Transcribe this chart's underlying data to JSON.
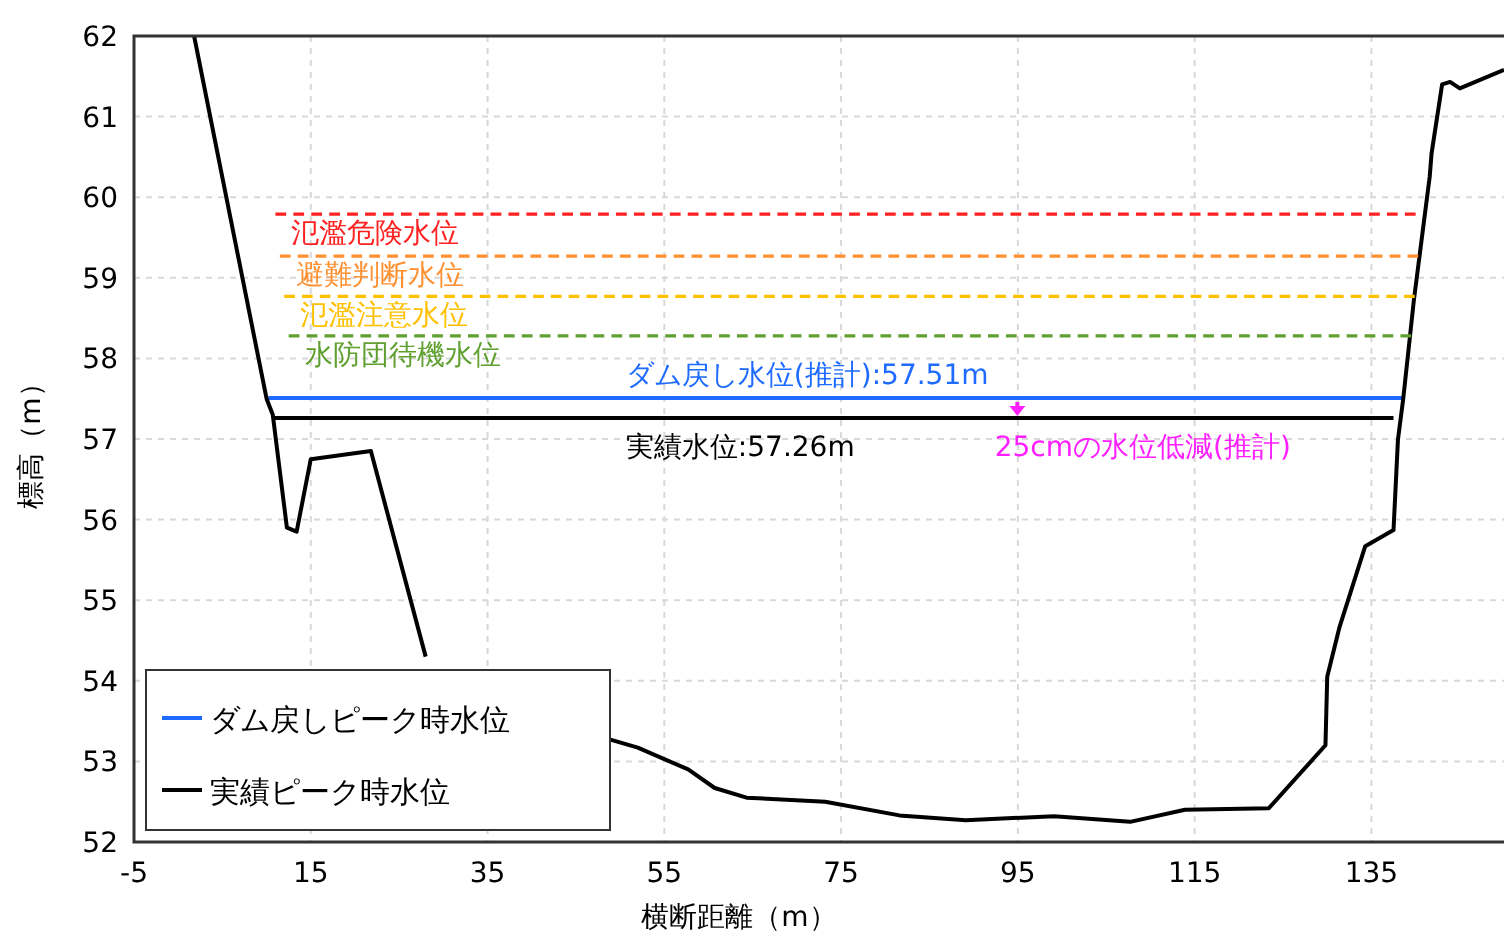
{
  "chart_data": {
    "type": "line",
    "xlabel": "横断距離（m）",
    "ylabel": "標高（m）",
    "xlim": [
      -5,
      150
    ],
    "xticks": [
      -5,
      15,
      35,
      55,
      75,
      95,
      115,
      135
    ],
    "ylim": [
      52,
      62
    ],
    "yticks": [
      52,
      53,
      54,
      55,
      56,
      57,
      58,
      59,
      60,
      61,
      62
    ],
    "grid": true,
    "legend": "bottom left",
    "line_style": "solid",
    "marker": "none",
    "series": [
      {
        "name": "ダム戻しピーク時水位",
        "color": "#1f6bff",
        "x": [
          10.2,
          138.6
        ],
        "values": [
          57.51,
          57.51
        ]
      },
      {
        "name": "実績ピーク時水位",
        "color": "#000000",
        "x": [
          10.7,
          137.5
        ],
        "values": [
          57.26,
          57.26
        ]
      },
      {
        "color": "#000000",
        "x": [
          1.8,
          10,
          10.7,
          12.3,
          13.4,
          15,
          21.8,
          28,
          38,
          48.9,
          52,
          57.7,
          60.7,
          64.3,
          73.2,
          81.6,
          89.1,
          99.1,
          107.7,
          113.9,
          123.4,
          129.8,
          130,
          131.4,
          134.3,
          137.5,
          138,
          138.6,
          139.8,
          141.6,
          141.8,
          143,
          143.9,
          145,
          150
        ],
        "values": [
          62,
          57.5,
          57.3,
          55.9,
          55.85,
          56.75,
          56.85,
          54.3,
          null,
          53.27,
          53.17,
          52.9,
          52.67,
          52.55,
          52.5,
          52.33,
          52.27,
          52.32,
          52.25,
          52.4,
          52.42,
          53.2,
          54.05,
          54.67,
          55.67,
          55.87,
          56.99,
          57.5,
          58.72,
          60.26,
          60.54,
          61.4,
          61.43,
          61.35,
          61.58
        ]
      },
      {
        "name": "氾濫危険水位",
        "color": "#ff2020",
        "line_style": "dashed",
        "x": [
          11,
          140
        ],
        "values": [
          59.79,
          59.79
        ]
      },
      {
        "name": "避難判断水位",
        "color": "#ff9030",
        "line_style": "dashed",
        "x": [
          11.5,
          140.3
        ],
        "values": [
          59.27,
          59.27
        ]
      },
      {
        "name": "氾濫注意水位",
        "color": "#ffc000",
        "line_style": "dashed",
        "x": [
          12,
          139.9
        ],
        "values": [
          58.77,
          58.77
        ]
      },
      {
        "name": "水防団待機水位",
        "color": "#5fa030",
        "line_style": "dashed",
        "x": [
          12.5,
          139.5
        ],
        "values": [
          58.28,
          58.28
        ]
      }
    ],
    "annotations": [
      "ダム戻し水位(推計):57.51m",
      "実績水位:57.26m",
      "25cmの水位低減(推計)"
    ]
  }
}
